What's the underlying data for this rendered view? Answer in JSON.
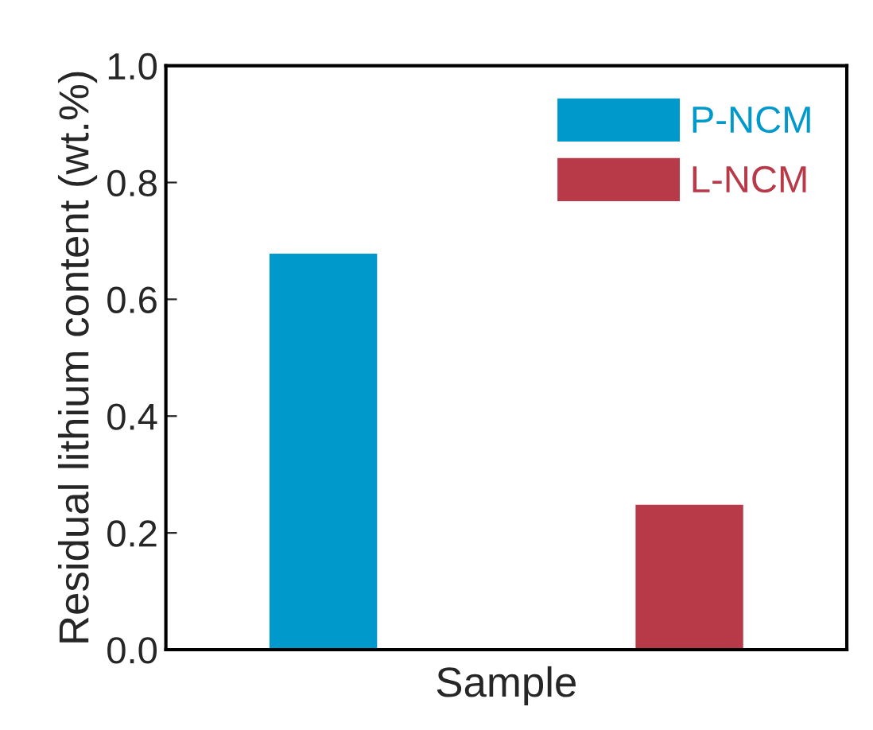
{
  "chart_data": {
    "type": "bar",
    "xlabel": "Sample",
    "ylabel": "Residual lithium content (wt.%)",
    "categories": [
      null,
      null
    ],
    "series": [
      {
        "name": "P-NCM",
        "color": "#0099cc",
        "values": [
          0.68,
          null
        ]
      },
      {
        "name": "L-NCM",
        "color": "#b83a48",
        "values": [
          null,
          0.25
        ]
      }
    ],
    "ylim": [
      0.0,
      1.0
    ],
    "yticks": [
      {
        "value": 0.0,
        "label": "0.0"
      },
      {
        "value": 0.2,
        "label": "0.2"
      },
      {
        "value": 0.4,
        "label": "0.4"
      },
      {
        "value": 0.6,
        "label": "0.6"
      },
      {
        "value": 0.8,
        "label": "0.8"
      },
      {
        "value": 1.0,
        "label": "1.0"
      }
    ],
    "grid": false,
    "legend": "top right"
  }
}
